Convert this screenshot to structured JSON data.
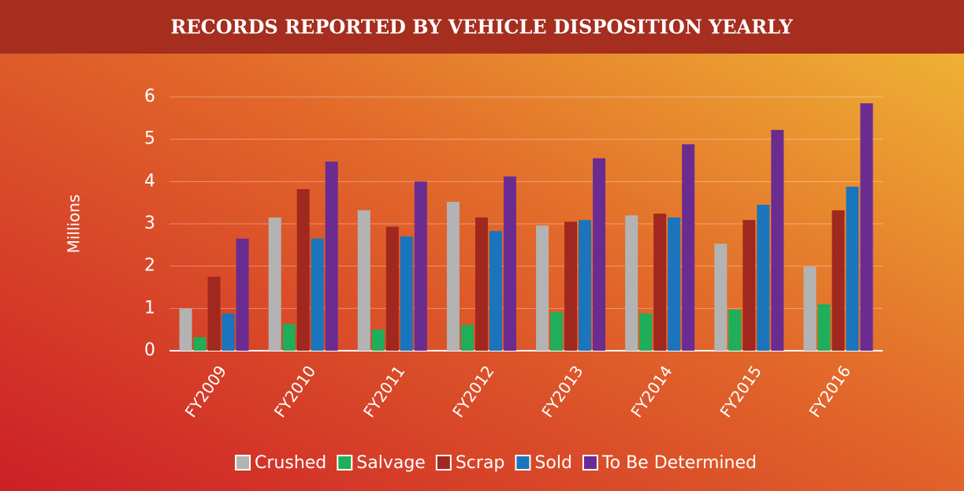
{
  "chart_data": {
    "type": "bar",
    "title": "RECORDS REPORTED BY VEHICLE DISPOSITION YEARLY",
    "y_label": "Millions",
    "categories": [
      "FY2009",
      "FY2010",
      "FY2011",
      "FY2012",
      "FY2013",
      "FY2014",
      "FY2015",
      "FY2016"
    ],
    "series": [
      {
        "name": "Crushed",
        "color": "#b3b3b3",
        "values": [
          1.0,
          3.15,
          3.32,
          3.52,
          2.96,
          3.2,
          2.53,
          1.99
        ]
      },
      {
        "name": "Salvage",
        "color": "#1fae5a",
        "values": [
          0.32,
          0.63,
          0.5,
          0.61,
          0.91,
          0.88,
          0.97,
          1.1
        ]
      },
      {
        "name": "Scrap",
        "color": "#a0281e",
        "values": [
          1.75,
          3.82,
          2.93,
          3.15,
          3.05,
          3.24,
          3.09,
          3.32
        ]
      },
      {
        "name": "Sold",
        "color": "#1b75bc",
        "values": [
          0.88,
          2.65,
          2.7,
          2.83,
          3.09,
          3.15,
          3.45,
          3.88
        ]
      },
      {
        "name": "To Be Determined",
        "color": "#6a2c91",
        "values": [
          2.65,
          4.47,
          4.0,
          4.12,
          4.55,
          4.88,
          5.22,
          5.85
        ]
      }
    ],
    "ylim": [
      0,
      6
    ],
    "yticks": [
      0,
      1,
      2,
      3,
      4,
      5,
      6
    ],
    "grid": true,
    "legend": "bottom"
  }
}
